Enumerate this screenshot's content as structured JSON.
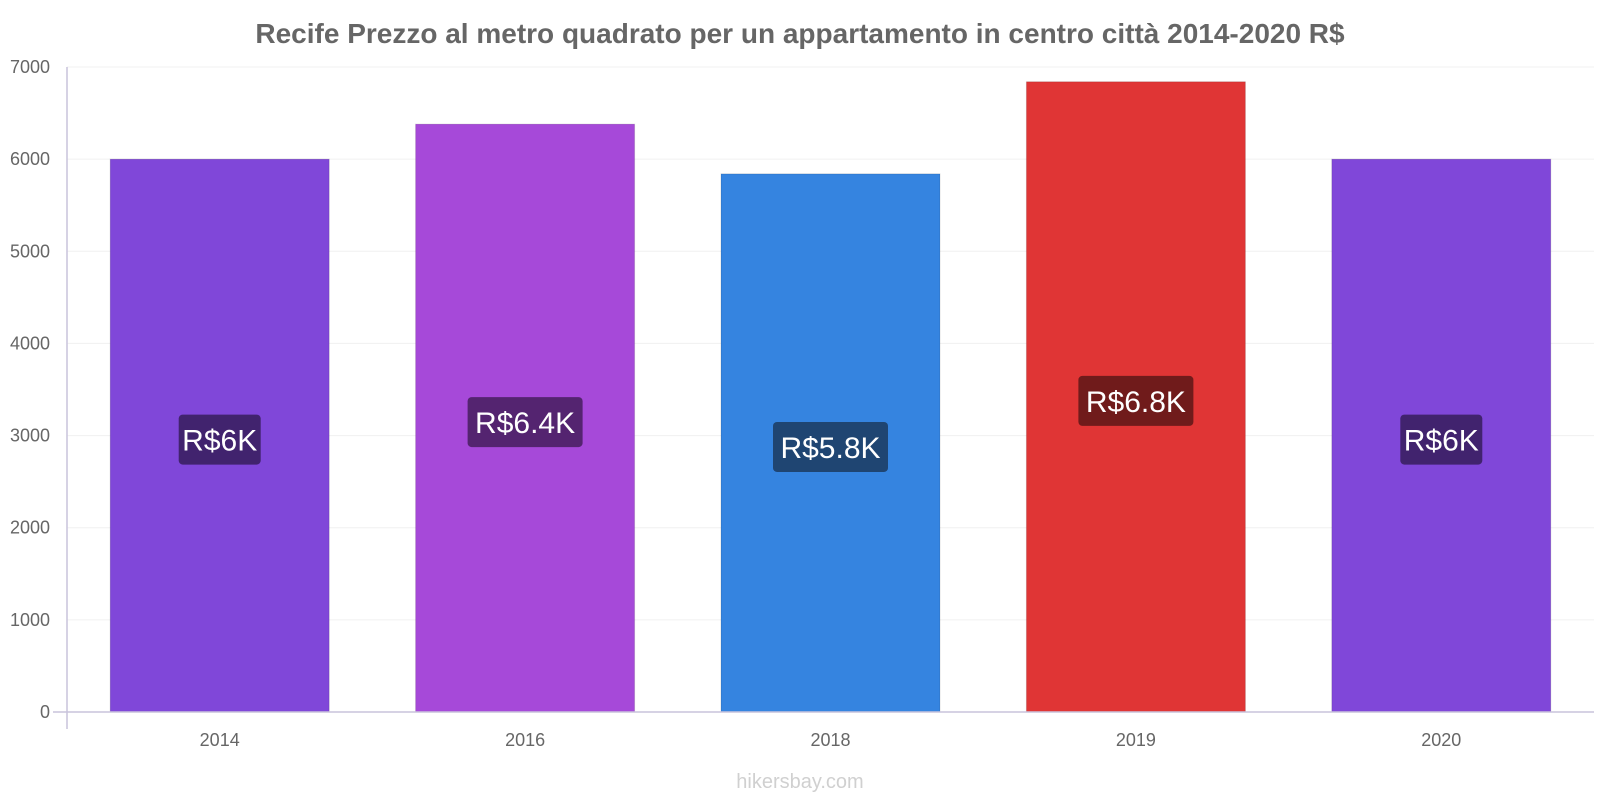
{
  "chart_data": {
    "type": "bar",
    "title": "Recife Prezzo al metro quadrato per un appartamento in centro città 2014-2020 R$",
    "categories": [
      "2014",
      "2016",
      "2018",
      "2019",
      "2020"
    ],
    "values": [
      6000,
      6380,
      5840,
      6840,
      6000
    ],
    "value_labels": [
      "R$6K",
      "R$6.4K",
      "R$5.8K",
      "R$6.8K",
      "R$6K"
    ],
    "colors": [
      "#8047d9",
      "#a649d9",
      "#3584e0",
      "#e03535",
      "#8047d9"
    ],
    "label_colors": [
      "#41236e",
      "#542470",
      "#1f4572",
      "#701b1b",
      "#41236e"
    ],
    "ylim": [
      0,
      7000
    ],
    "yticks": [
      0,
      1000,
      2000,
      3000,
      4000,
      5000,
      6000,
      7000
    ],
    "grid": true,
    "xlabel": "",
    "ylabel": ""
  },
  "source": "hikersbay.com"
}
